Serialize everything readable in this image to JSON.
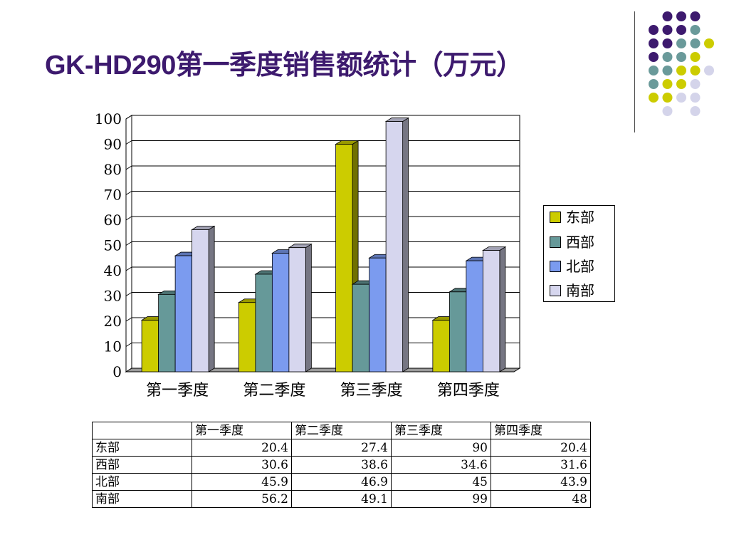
{
  "slide": {
    "title": "GK-HD290第一季度销售额统计（万元）"
  },
  "colors": {
    "title": "#3d1a6e",
    "dark_purple": "#3d1a6e",
    "teal": "#6a9a9a",
    "yellow": "#cccc00",
    "lavender": "#d4d4ea"
  },
  "chart_data": {
    "type": "bar",
    "subtype": "3d-clustered-column",
    "title": "",
    "xlabel": "",
    "ylabel": "",
    "categories": [
      "第一季度",
      "第二季度",
      "第三季度",
      "第四季度"
    ],
    "series": [
      {
        "name": "东部",
        "color": "#cccc00",
        "values": [
          20.4,
          27.4,
          90,
          20.4
        ]
      },
      {
        "name": "西部",
        "color": "#669999",
        "values": [
          30.6,
          38.6,
          34.6,
          31.6
        ]
      },
      {
        "name": "北部",
        "color": "#7b9bef",
        "values": [
          45.9,
          46.9,
          45,
          43.9
        ]
      },
      {
        "name": "南部",
        "color": "#d6d6ee",
        "values": [
          56.2,
          49.1,
          99,
          48
        ]
      }
    ],
    "ylim": [
      0,
      100
    ],
    "yticks": [
      "0",
      "10",
      "20",
      "30",
      "40",
      "50",
      "60",
      "70",
      "80",
      "90",
      "100"
    ],
    "grid": true,
    "legend_position": "right"
  },
  "table": {
    "corner": "",
    "headers": [
      "第一季度",
      "第二季度",
      "第三季度",
      "第四季度"
    ],
    "rows": [
      {
        "label": "东部",
        "cells": [
          "20.4",
          "27.4",
          "90",
          "20.4"
        ]
      },
      {
        "label": "西部",
        "cells": [
          "30.6",
          "38.6",
          "34.6",
          "31.6"
        ]
      },
      {
        "label": "北部",
        "cells": [
          "45.9",
          "46.9",
          "45",
          "43.9"
        ]
      },
      {
        "label": "南部",
        "cells": [
          "56.2",
          "49.1",
          "99",
          "48"
        ]
      }
    ]
  }
}
